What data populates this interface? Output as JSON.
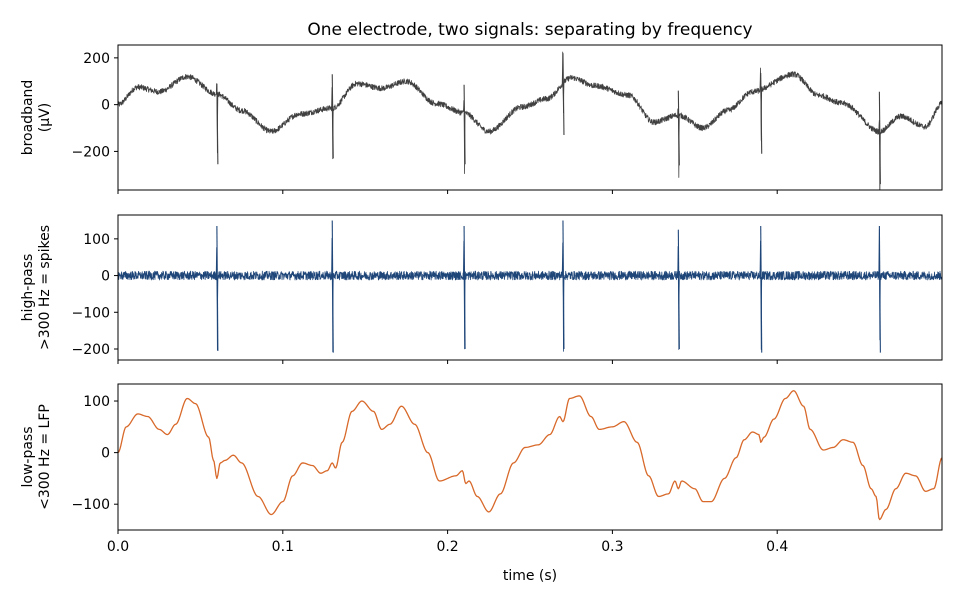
{
  "chart_data": [
    {
      "type": "line",
      "title": "One electrode, two signals: separating by frequency",
      "ylabel": [
        "broadband",
        "(µV)"
      ],
      "xlabel": "",
      "xlim": [
        0.0,
        0.5
      ],
      "ylim": [
        -365,
        255
      ],
      "yticks": [
        200,
        0,
        -200
      ],
      "xticks": [
        0.0,
        0.1,
        0.2,
        0.3,
        0.4
      ],
      "color": "#404040",
      "grid": false,
      "lfp_anchor_values": [
        [
          0.0,
          0
        ],
        [
          0.012,
          75
        ],
        [
          0.025,
          55
        ],
        [
          0.042,
          120
        ],
        [
          0.06,
          45
        ],
        [
          0.075,
          -25
        ],
        [
          0.093,
          -115
        ],
        [
          0.11,
          -40
        ],
        [
          0.13,
          -15
        ],
        [
          0.145,
          90
        ],
        [
          0.16,
          70
        ],
        [
          0.175,
          100
        ],
        [
          0.193,
          5
        ],
        [
          0.21,
          -35
        ],
        [
          0.225,
          -115
        ],
        [
          0.245,
          -10
        ],
        [
          0.26,
          25
        ],
        [
          0.275,
          115
        ],
        [
          0.29,
          80
        ],
        [
          0.31,
          40
        ],
        [
          0.325,
          -75
        ],
        [
          0.34,
          -45
        ],
        [
          0.355,
          -100
        ],
        [
          0.37,
          -25
        ],
        [
          0.385,
          55
        ],
        [
          0.41,
          130
        ],
        [
          0.425,
          40
        ],
        [
          0.44,
          5
        ],
        [
          0.462,
          -115
        ],
        [
          0.475,
          -50
        ],
        [
          0.49,
          -95
        ],
        [
          0.5,
          5
        ]
      ],
      "spike_times": [
        0.06,
        0.13,
        0.21,
        0.27,
        0.34,
        0.39,
        0.462
      ],
      "spike_peaks": [
        90,
        130,
        85,
        220,
        60,
        135,
        55
      ],
      "spike_troughs": [
        -255,
        -230,
        -255,
        -130,
        -260,
        -210,
        -340
      ],
      "noise_amplitude": 12
    },
    {
      "type": "line",
      "title": "",
      "ylabel": [
        "high-pass",
        ">300 Hz = spikes"
      ],
      "xlabel": "",
      "xlim": [
        0.0,
        0.5
      ],
      "ylim": [
        -230,
        165
      ],
      "yticks": [
        100,
        0,
        -100,
        -200
      ],
      "xticks": [
        0.0,
        0.1,
        0.2,
        0.3,
        0.4
      ],
      "color": "#1f4679",
      "grid": false,
      "spike_times": [
        0.06,
        0.13,
        0.21,
        0.27,
        0.34,
        0.39,
        0.462
      ],
      "spike_peaks": [
        135,
        150,
        135,
        150,
        125,
        135,
        135
      ],
      "spike_troughs": [
        -205,
        -210,
        -200,
        -200,
        -200,
        -210,
        -210
      ],
      "noise_amplitude": 12
    },
    {
      "type": "line",
      "title": "",
      "ylabel": [
        "low-pass",
        "<300 Hz = LFP"
      ],
      "xlabel": "time (s)",
      "xlim": [
        0.0,
        0.5
      ],
      "ylim": [
        -150,
        133
      ],
      "yticks": [
        100,
        0,
        -100
      ],
      "xticks": [
        0.0,
        0.1,
        0.2,
        0.3,
        0.4
      ],
      "xticklabels": [
        "0.0",
        "0.1",
        "0.2",
        "0.3",
        "0.4"
      ],
      "color": "#d8692a",
      "grid": false,
      "anchor_values": [
        [
          0.0,
          0
        ],
        [
          0.005,
          50
        ],
        [
          0.012,
          75
        ],
        [
          0.018,
          70
        ],
        [
          0.025,
          45
        ],
        [
          0.03,
          35
        ],
        [
          0.035,
          55
        ],
        [
          0.042,
          105
        ],
        [
          0.047,
          95
        ],
        [
          0.055,
          30
        ],
        [
          0.058,
          -15
        ],
        [
          0.06,
          -50
        ],
        [
          0.062,
          -20
        ],
        [
          0.065,
          -15
        ],
        [
          0.07,
          -5
        ],
        [
          0.075,
          -20
        ],
        [
          0.085,
          -85
        ],
        [
          0.093,
          -120
        ],
        [
          0.1,
          -95
        ],
        [
          0.106,
          -45
        ],
        [
          0.112,
          -20
        ],
        [
          0.118,
          -25
        ],
        [
          0.123,
          -40
        ],
        [
          0.127,
          -35
        ],
        [
          0.13,
          -20
        ],
        [
          0.132,
          -30
        ],
        [
          0.136,
          20
        ],
        [
          0.142,
          80
        ],
        [
          0.148,
          100
        ],
        [
          0.155,
          80
        ],
        [
          0.16,
          45
        ],
        [
          0.165,
          55
        ],
        [
          0.172,
          90
        ],
        [
          0.18,
          55
        ],
        [
          0.188,
          0
        ],
        [
          0.195,
          -55
        ],
        [
          0.205,
          -45
        ],
        [
          0.209,
          -35
        ],
        [
          0.211,
          -60
        ],
        [
          0.213,
          -55
        ],
        [
          0.218,
          -85
        ],
        [
          0.225,
          -115
        ],
        [
          0.232,
          -80
        ],
        [
          0.24,
          -20
        ],
        [
          0.247,
          10
        ],
        [
          0.255,
          15
        ],
        [
          0.262,
          35
        ],
        [
          0.268,
          70
        ],
        [
          0.27,
          60
        ],
        [
          0.274,
          105
        ],
        [
          0.28,
          110
        ],
        [
          0.287,
          70
        ],
        [
          0.292,
          45
        ],
        [
          0.3,
          50
        ],
        [
          0.307,
          60
        ],
        [
          0.315,
          20
        ],
        [
          0.322,
          -45
        ],
        [
          0.328,
          -85
        ],
        [
          0.334,
          -80
        ],
        [
          0.338,
          -55
        ],
        [
          0.34,
          -70
        ],
        [
          0.342,
          -55
        ],
        [
          0.35,
          -70
        ],
        [
          0.355,
          -95
        ],
        [
          0.36,
          -95
        ],
        [
          0.368,
          -50
        ],
        [
          0.375,
          -10
        ],
        [
          0.38,
          25
        ],
        [
          0.385,
          40
        ],
        [
          0.389,
          35
        ],
        [
          0.39,
          20
        ],
        [
          0.392,
          30
        ],
        [
          0.398,
          65
        ],
        [
          0.405,
          105
        ],
        [
          0.41,
          120
        ],
        [
          0.416,
          90
        ],
        [
          0.42,
          45
        ],
        [
          0.428,
          5
        ],
        [
          0.434,
          10
        ],
        [
          0.44,
          25
        ],
        [
          0.446,
          20
        ],
        [
          0.452,
          -25
        ],
        [
          0.457,
          -70
        ],
        [
          0.46,
          -85
        ],
        [
          0.462,
          -130
        ],
        [
          0.466,
          -110
        ],
        [
          0.472,
          -70
        ],
        [
          0.478,
          -40
        ],
        [
          0.484,
          -45
        ],
        [
          0.49,
          -75
        ],
        [
          0.495,
          -70
        ],
        [
          0.5,
          -10
        ]
      ]
    }
  ]
}
